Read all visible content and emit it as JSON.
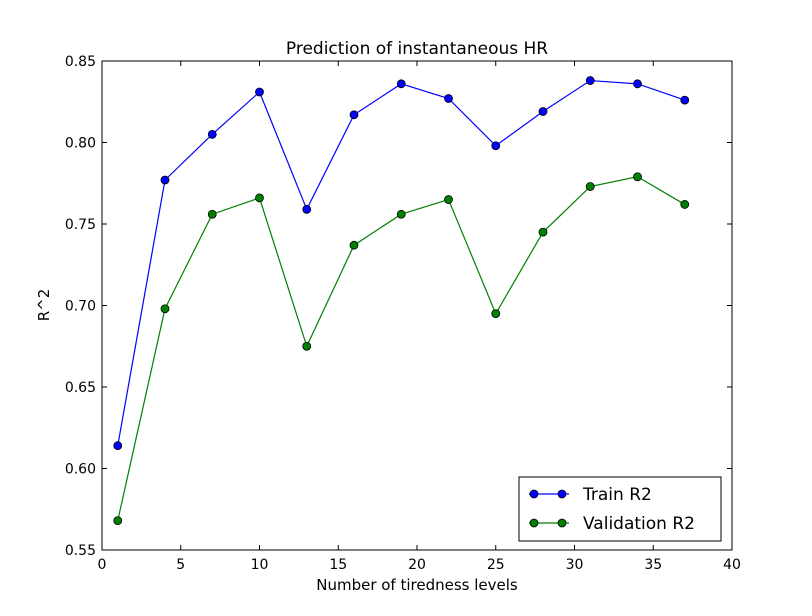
{
  "chart_data": {
    "type": "line",
    "title": "Prediction of instantaneous HR",
    "xlabel": "Number of tiredness levels",
    "ylabel": "R^2",
    "xlim": [
      0,
      40
    ],
    "ylim": [
      0.55,
      0.85
    ],
    "xticks": [
      0,
      5,
      10,
      15,
      20,
      25,
      30,
      35,
      40
    ],
    "xtick_labels": [
      "0",
      "5",
      "10",
      "15",
      "20",
      "25",
      "30",
      "35",
      "40"
    ],
    "yticks": [
      0.55,
      0.6,
      0.65,
      0.7,
      0.75,
      0.8,
      0.85
    ],
    "ytick_labels": [
      "0.55",
      "0.60",
      "0.65",
      "0.70",
      "0.75",
      "0.80",
      "0.85"
    ],
    "grid": false,
    "legend_position": "lower-right",
    "x": [
      1,
      4,
      7,
      10,
      13,
      16,
      19,
      22,
      25,
      28,
      31,
      34,
      37
    ],
    "series": [
      {
        "name": "Train R2",
        "color": "#0000ff",
        "values": [
          0.614,
          0.777,
          0.805,
          0.831,
          0.759,
          0.817,
          0.836,
          0.827,
          0.798,
          0.819,
          0.838,
          0.836,
          0.826
        ]
      },
      {
        "name": "Validation R2",
        "color": "#008000",
        "values": [
          0.568,
          0.698,
          0.756,
          0.766,
          0.675,
          0.737,
          0.756,
          0.765,
          0.695,
          0.745,
          0.773,
          0.779,
          0.762
        ]
      }
    ]
  }
}
